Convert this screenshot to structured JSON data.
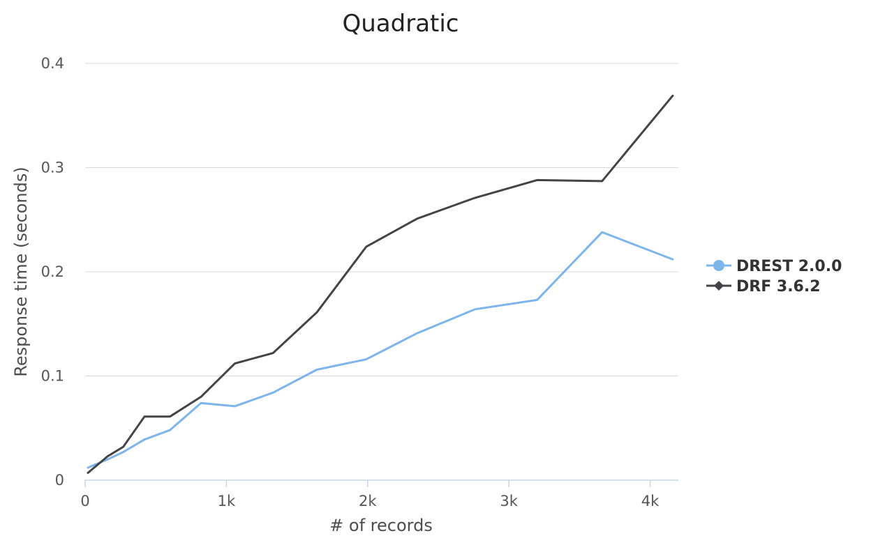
{
  "chart_data": {
    "type": "line",
    "title": "Quadratic",
    "xlabel": "# of records",
    "ylabel": "Response time (seconds)",
    "xlim": [
      0,
      4200
    ],
    "ylim": [
      0,
      0.4
    ],
    "x_ticks": [
      0,
      1000,
      2000,
      3000,
      4000
    ],
    "x_tick_labels": [
      "0",
      "1k",
      "2k",
      "3k",
      "4k"
    ],
    "y_ticks": [
      0,
      0.1,
      0.2,
      0.3,
      0.4
    ],
    "y_tick_labels": [
      "0",
      "0.1",
      "0.2",
      "0.3",
      "0.4"
    ],
    "grid": true,
    "legend_position": "right",
    "series": [
      {
        "name": "DREST 2.0.0",
        "color": "#7cb5ec",
        "marker": "circle",
        "x": [
          20,
          160,
          270,
          420,
          600,
          820,
          1060,
          1330,
          1640,
          1990,
          2350,
          2760,
          3200,
          3660,
          4160
        ],
        "y": [
          0.012,
          0.02,
          0.027,
          0.039,
          0.048,
          0.074,
          0.071,
          0.084,
          0.106,
          0.116,
          0.141,
          0.164,
          0.173,
          0.238,
          0.212
        ]
      },
      {
        "name": "DRF 3.6.2",
        "color": "#434348",
        "marker": "diamond",
        "x": [
          20,
          160,
          270,
          420,
          600,
          820,
          1060,
          1330,
          1640,
          1990,
          2350,
          2760,
          3200,
          3660,
          4160
        ],
        "y": [
          0.007,
          0.023,
          0.032,
          0.061,
          0.061,
          0.08,
          0.112,
          0.122,
          0.161,
          0.224,
          0.251,
          0.271,
          0.288,
          0.287,
          0.369
        ]
      }
    ]
  }
}
